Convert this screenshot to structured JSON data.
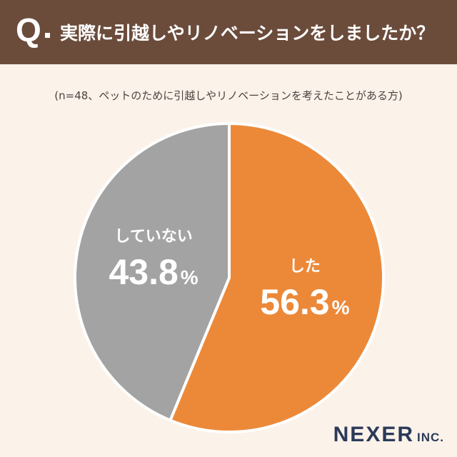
{
  "header": {
    "q_mark": "Q",
    "question": "実際に引越しやリノベーションをしましたか？"
  },
  "note": "(n=48、ペットのために引越しやリノベーションを考えたことがある方)",
  "chart_data": {
    "type": "pie",
    "categories": [
      "した",
      "していない"
    ],
    "values": [
      56.3,
      43.8
    ],
    "labels": [
      "56.3",
      "43.8"
    ],
    "unit": "%",
    "colors": [
      "#ec8939",
      "#a3a3a3"
    ],
    "title": "",
    "legend": "none"
  },
  "logo": {
    "main": "NEXER",
    "sub": "INC."
  }
}
